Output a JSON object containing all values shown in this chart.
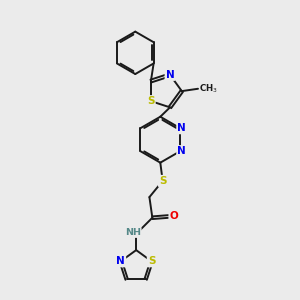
{
  "background_color": "#ebebeb",
  "bond_color": "#1a1a1a",
  "bond_width": 1.4,
  "atom_colors": {
    "N": "#0000ee",
    "S": "#bbbb00",
    "O": "#ee0000",
    "H": "#558888",
    "C": "#1a1a1a"
  },
  "font_size_atom": 7.5,
  "dbo": 0.055
}
